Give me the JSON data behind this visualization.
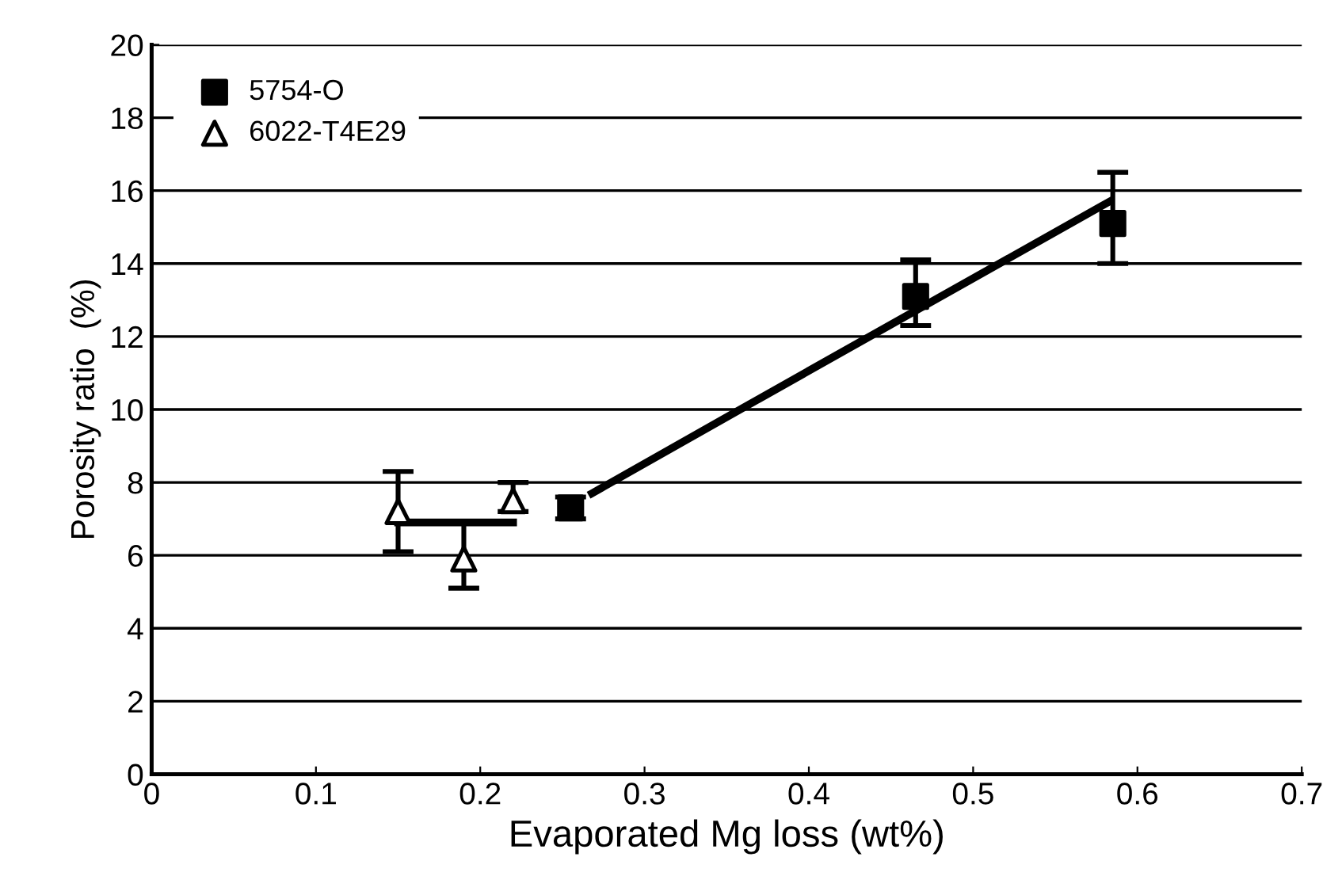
{
  "chart_data": {
    "type": "scatter",
    "xlabel": "Evaporated Mg loss (wt%)",
    "ylabel": "Porosity ratio  (%)",
    "xlim": [
      0,
      0.7
    ],
    "xticks": [
      {
        "value": 0,
        "label": "0"
      },
      0.1,
      0.2,
      0.3,
      0.4,
      0.5,
      0.6,
      0.7
    ],
    "ylim": [
      0,
      20
    ],
    "yticks": [
      0,
      2,
      4,
      6,
      8,
      10,
      12,
      14,
      16,
      18,
      20
    ],
    "grid": "y",
    "legend": "top left",
    "series": [
      {
        "name": "5754-O",
        "marker": "square",
        "color": "#000000",
        "x": [
          0.255,
          0.465,
          0.585
        ],
        "values": [
          7.3,
          13.1,
          15.1
        ],
        "errors": [
          0.3,
          [
            12.3,
            14.1
          ],
          [
            14.0,
            16.5
          ]
        ]
      },
      {
        "name": "6022-T4E29",
        "marker": "triangle",
        "color": "#000000",
        "x": [
          0.15,
          0.19,
          0.22
        ],
        "values": [
          7.2,
          5.9,
          7.5
        ],
        "errors": [
          [
            6.1,
            8.3
          ],
          [
            5.1,
            6.9
          ],
          [
            7.2,
            8.0
          ]
        ]
      },
      {
        "type": "line",
        "color": "#000000",
        "x": [
          0.268,
          0.37,
          0.583
        ],
        "values": [
          7.7,
          10.3,
          15.7
        ]
      },
      {
        "type": "line",
        "color": "#000000",
        "x": [
          0.15,
          0.22
        ],
        "values": [
          6.9,
          6.9
        ]
      }
    ]
  }
}
